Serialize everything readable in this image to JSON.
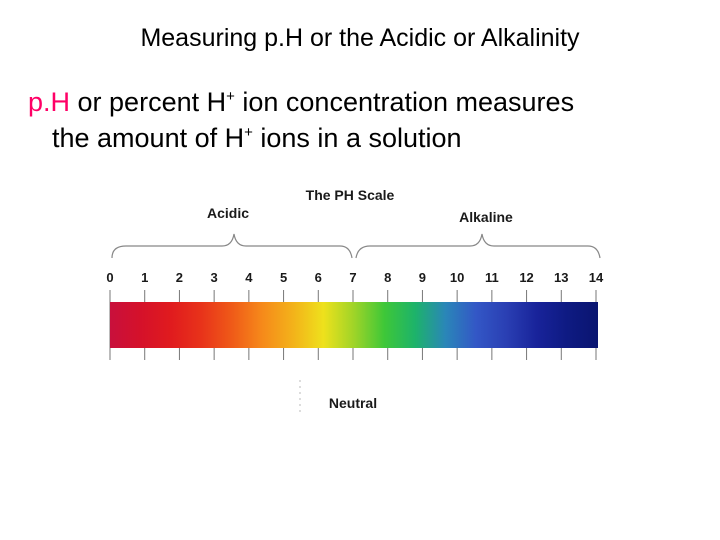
{
  "slide": {
    "title": "Measuring p.H or the Acidic or Alkalinity",
    "line1_highlight": "p.H",
    "line1_text": " or percent H",
    "line1_sup": "+",
    "line1_rest": " ion concentration measures",
    "line2_text": "the amount of H",
    "line2_sup": "+",
    "line2_rest": " ions in a solution"
  },
  "ph_scale": {
    "title": "The PH Scale",
    "acidic_label": "Acidic",
    "alkaline_label": "Alkaline",
    "neutral_label": "Neutral",
    "neutral_value": 7,
    "ticks": [
      "0",
      "1",
      "2",
      "3",
      "4",
      "5",
      "6",
      "7",
      "8",
      "9",
      "10",
      "11",
      "12",
      "13",
      "14"
    ],
    "band_colors": [
      "#c8103c",
      "#d5112a",
      "#e01b1e",
      "#e8331a",
      "#ef5a18",
      "#f68a1a",
      "#f3b21a",
      "#eee11c",
      "#9fd428",
      "#3ec738",
      "#1db36a",
      "#2a86b8",
      "#3357c6",
      "#2a3fb3",
      "#18239a",
      "#0e1a82",
      "#0a1570"
    ]
  }
}
